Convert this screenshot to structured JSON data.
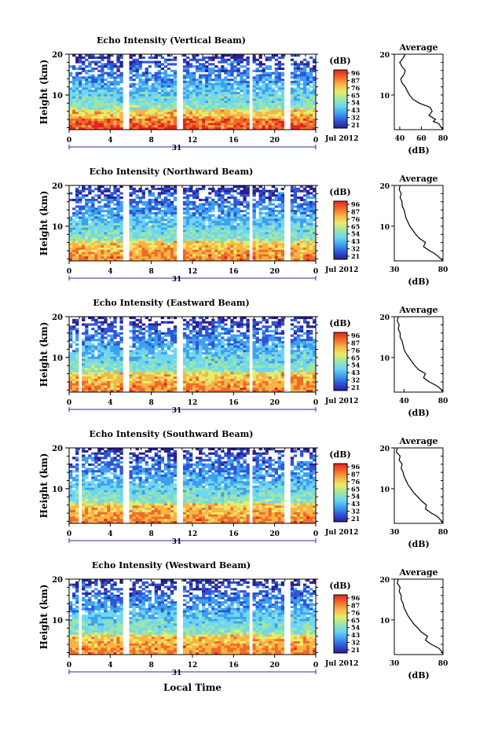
{
  "figure": {
    "xlabel": "Local Time",
    "date_label": "Jul 2012",
    "day_label": "31",
    "x_ticks": [
      "0",
      "4",
      "8",
      "12",
      "16",
      "20",
      "0"
    ],
    "colorbar": {
      "unit": "(dB)",
      "ticks": [
        "96",
        "87",
        "76",
        "65",
        "54",
        "43",
        "32",
        "21"
      ]
    },
    "colormap": [
      "#2a1f8f",
      "#2f55d8",
      "#3da0ef",
      "#6fd6f0",
      "#9ce6a8",
      "#e9ec6a",
      "#f7b445",
      "#f06a2a",
      "#e3241e"
    ],
    "avg_title": "Average",
    "avg_xlabel": "(dB)"
  },
  "chart_data": [
    {
      "type": "heatmap",
      "title": "Echo Intensity (Vertical Beam)",
      "xlabel": "Local Time",
      "ylabel": "Height (km)",
      "xlim": [
        0,
        24
      ],
      "ylim": [
        1.5,
        20
      ],
      "y_ticks": [
        "20",
        "10"
      ],
      "gaps_hours": [
        [
          5.2,
          5.7
        ],
        [
          10.6,
          11.0
        ],
        [
          17.5,
          17.9
        ],
        [
          21.0,
          21.5
        ]
      ],
      "value_range_db": [
        21,
        96
      ]
    },
    {
      "type": "line",
      "title": "Average",
      "xlabel": "(dB)",
      "ylabel": "Height (km)",
      "xlim": [
        35,
        80
      ],
      "ylim": [
        1.5,
        20
      ],
      "x_ticks": [
        "40",
        "60",
        "80"
      ],
      "y_ticks": [
        "20",
        "10"
      ],
      "x": [
        45,
        43,
        40,
        42,
        45,
        44,
        41,
        42,
        45,
        47,
        49,
        52,
        58,
        68,
        70,
        67,
        73,
        71,
        76,
        78,
        80
      ],
      "y": [
        20,
        19,
        18,
        17,
        16,
        15,
        14,
        13,
        12,
        11,
        10,
        9,
        8,
        7,
        6,
        5,
        4,
        3.5,
        3,
        2.2,
        1.5
      ]
    },
    {
      "type": "heatmap",
      "title": "Echo Intensity (Northward Beam)",
      "xlabel": "Local Time",
      "ylabel": "Height (km)",
      "xlim": [
        0,
        24
      ],
      "ylim": [
        1.5,
        20
      ],
      "y_ticks": [
        "20",
        "10"
      ],
      "gaps_hours": [
        [
          5.2,
          5.7
        ],
        [
          10.6,
          11.0
        ],
        [
          17.5,
          17.9
        ],
        [
          21.0,
          21.5
        ]
      ],
      "value_range_db": [
        21,
        96
      ]
    },
    {
      "type": "line",
      "title": "Average",
      "xlabel": "(dB)",
      "ylabel": "Height (km)",
      "xlim": [
        30,
        80
      ],
      "ylim": [
        1.5,
        20
      ],
      "x_ticks": [
        "30",
        "80"
      ],
      "y_ticks": [
        "20",
        "10"
      ],
      "x": [
        36,
        35,
        37,
        36,
        38,
        38,
        40,
        41,
        42,
        44,
        46,
        49,
        52,
        56,
        62,
        60,
        66,
        70,
        73,
        77,
        80
      ],
      "y": [
        20,
        19,
        18,
        17,
        16,
        15,
        14,
        13,
        12,
        11,
        10,
        9,
        8,
        7,
        6,
        5,
        4,
        3.5,
        3,
        2.2,
        1.5
      ]
    },
    {
      "type": "heatmap",
      "title": "Echo Intensity (Eastward Beam)",
      "xlabel": "Local Time",
      "ylabel": "Height (km)",
      "xlim": [
        0,
        24
      ],
      "ylim": [
        1.5,
        20
      ],
      "y_ticks": [
        "20",
        "10"
      ],
      "gaps_hours": [
        [
          1.0,
          1.3
        ],
        [
          5.2,
          5.7
        ],
        [
          10.6,
          11.0
        ],
        [
          17.5,
          17.9
        ],
        [
          21.0,
          21.5
        ]
      ],
      "value_range_db": [
        21,
        96
      ]
    },
    {
      "type": "line",
      "title": "Average",
      "xlabel": "(dB)",
      "ylabel": "Height (km)",
      "xlim": [
        30,
        80
      ],
      "ylim": [
        1.5,
        20
      ],
      "x_ticks": [
        "40",
        "80"
      ],
      "y_ticks": [
        "20",
        "10"
      ],
      "x": [
        34,
        33,
        35,
        34,
        36,
        36,
        38,
        39,
        40,
        42,
        45,
        48,
        51,
        55,
        62,
        60,
        66,
        70,
        74,
        78,
        80
      ],
      "y": [
        20,
        19,
        18,
        17,
        16,
        15,
        14,
        13,
        12,
        11,
        10,
        9,
        8,
        7,
        6,
        5,
        4,
        3.5,
        3,
        2.2,
        1.5
      ]
    },
    {
      "type": "heatmap",
      "title": "Echo Intensity (Southward Beam)",
      "xlabel": "Local Time",
      "ylabel": "Height (km)",
      "xlim": [
        0,
        24
      ],
      "ylim": [
        1.5,
        20
      ],
      "y_ticks": [
        "20",
        "10"
      ],
      "gaps_hours": [
        [
          1.0,
          1.3
        ],
        [
          5.2,
          5.7
        ],
        [
          10.6,
          11.0
        ],
        [
          17.5,
          17.9
        ],
        [
          21.0,
          21.5
        ]
      ],
      "value_range_db": [
        21,
        96
      ]
    },
    {
      "type": "line",
      "title": "Average",
      "xlabel": "(dB)",
      "ylabel": "Height (km)",
      "xlim": [
        30,
        80
      ],
      "ylim": [
        1.5,
        20
      ],
      "x_ticks": [
        "30",
        "80"
      ],
      "y_ticks": [
        "20",
        "10"
      ],
      "x": [
        33,
        32,
        36,
        35,
        38,
        37,
        39,
        40,
        42,
        44,
        47,
        50,
        54,
        58,
        63,
        62,
        68,
        72,
        75,
        78,
        80
      ],
      "y": [
        20,
        19,
        18,
        17,
        16,
        15,
        14,
        13,
        12,
        11,
        10,
        9,
        8,
        7,
        6,
        5,
        4,
        3.5,
        3,
        2.2,
        1.5
      ]
    },
    {
      "type": "heatmap",
      "title": "Echo Intensity (Westward Beam)",
      "xlabel": "Local Time",
      "ylabel": "Height (km)",
      "xlim": [
        0,
        24
      ],
      "ylim": [
        1.5,
        20
      ],
      "y_ticks": [
        "20",
        "10"
      ],
      "gaps_hours": [
        [
          1.0,
          1.3
        ],
        [
          5.2,
          5.7
        ],
        [
          10.6,
          11.0
        ],
        [
          17.5,
          17.9
        ],
        [
          21.0,
          21.5
        ]
      ],
      "value_range_db": [
        21,
        96
      ]
    },
    {
      "type": "line",
      "title": "Average",
      "xlabel": "(dB)",
      "ylabel": "Height (km)",
      "xlim": [
        30,
        80
      ],
      "ylim": [
        1.5,
        20
      ],
      "x_ticks": [
        "30",
        "80"
      ],
      "y_ticks": [
        "20",
        "10"
      ],
      "x": [
        34,
        33,
        36,
        35,
        37,
        37,
        39,
        40,
        42,
        44,
        47,
        50,
        54,
        58,
        64,
        62,
        68,
        72,
        76,
        79,
        80
      ],
      "y": [
        20,
        19,
        18,
        17,
        16,
        15,
        14,
        13,
        12,
        11,
        10,
        9,
        8,
        7,
        6,
        5,
        4,
        3.5,
        3,
        2.2,
        1.5
      ]
    }
  ]
}
